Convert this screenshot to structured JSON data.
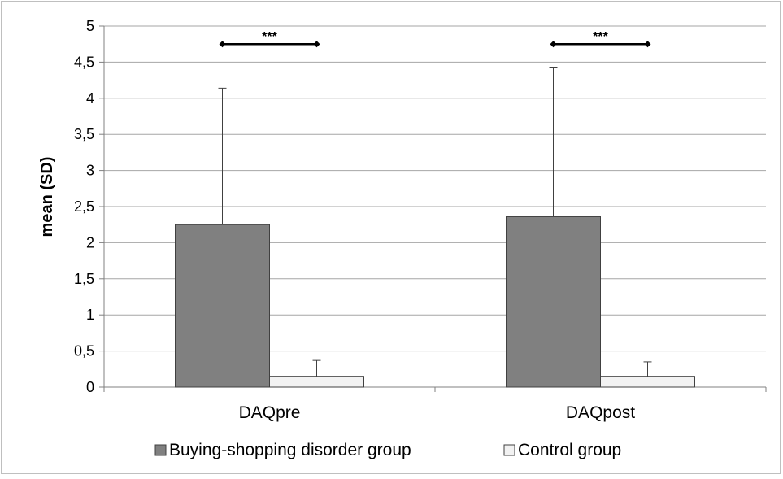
{
  "chart_data": {
    "type": "bar",
    "categories": [
      "DAQpre",
      "DAQpost"
    ],
    "series": [
      {
        "name": "Buying-shopping disorder group",
        "values": [
          2.25,
          2.36
        ],
        "errors": [
          1.89,
          2.06
        ],
        "color": "#808080"
      },
      {
        "name": "Control group",
        "values": [
          0.15,
          0.15
        ],
        "errors": [
          0.22,
          0.2
        ],
        "color": "#f2f2f2"
      }
    ],
    "ylabel": "mean (SD)",
    "xlabel": "",
    "title": "",
    "ylim": [
      0,
      5
    ],
    "yticks": [
      0,
      0.5,
      1,
      1.5,
      2,
      2.5,
      3,
      3.5,
      4,
      4.5,
      5
    ],
    "ytick_labels": [
      "0",
      "0,5",
      "1",
      "1,5",
      "2",
      "2,5",
      "3",
      "3,5",
      "4",
      "4,5",
      "5"
    ],
    "grid": true,
    "legend_position": "bottom",
    "annotations": [
      {
        "category": "DAQpre",
        "text": "***",
        "y": 4.75
      },
      {
        "category": "DAQpost",
        "text": "***",
        "y": 4.75
      }
    ],
    "border_color": "#bfbfbf",
    "gridline_color": "#a6a6a6"
  }
}
